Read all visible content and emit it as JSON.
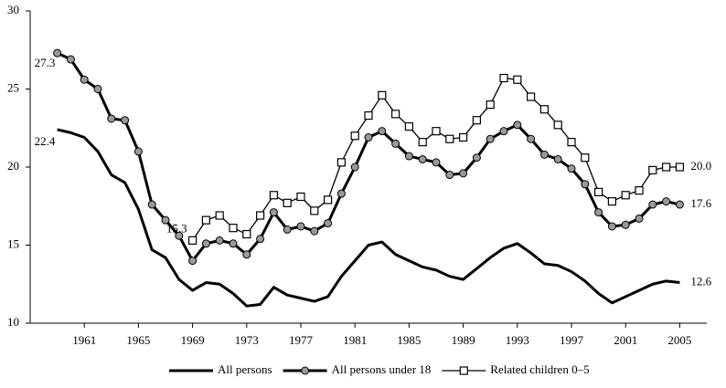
{
  "chart_data": {
    "type": "line",
    "x": [
      1959,
      1960,
      1961,
      1962,
      1963,
      1964,
      1965,
      1966,
      1967,
      1968,
      1969,
      1970,
      1971,
      1972,
      1973,
      1974,
      1975,
      1976,
      1977,
      1978,
      1979,
      1980,
      1981,
      1982,
      1983,
      1984,
      1985,
      1986,
      1987,
      1988,
      1989,
      1990,
      1991,
      1992,
      1993,
      1994,
      1995,
      1996,
      1997,
      1998,
      1999,
      2000,
      2001,
      2002,
      2003,
      2004,
      2005
    ],
    "xlim": [
      1957,
      2007
    ],
    "xticks": [
      1961,
      1965,
      1969,
      1973,
      1977,
      1981,
      1985,
      1989,
      1993,
      1997,
      2001,
      2005
    ],
    "ylim": [
      10,
      30
    ],
    "yticks": [
      10,
      15,
      20,
      25,
      30
    ],
    "legend": "bottom",
    "series": [
      {
        "name": "All persons",
        "color": "#000000",
        "values": [
          22.4,
          22.2,
          21.9,
          21.0,
          19.5,
          19.0,
          17.3,
          14.7,
          14.2,
          12.8,
          12.1,
          12.6,
          12.5,
          11.9,
          11.1,
          11.2,
          12.3,
          11.8,
          11.6,
          11.4,
          11.7,
          13.0,
          14.0,
          15.0,
          15.2,
          14.4,
          14.0,
          13.6,
          13.4,
          13.0,
          12.8,
          13.5,
          14.2,
          14.8,
          15.1,
          14.5,
          13.8,
          13.7,
          13.3,
          12.7,
          11.9,
          11.3,
          11.7,
          12.1,
          12.5,
          12.7,
          12.6
        ],
        "value_labels": [
          "22.4",
          null,
          null,
          null,
          null,
          null,
          null,
          null,
          null,
          null,
          null,
          null,
          null,
          null,
          null,
          null,
          null,
          null,
          null,
          null,
          null,
          null,
          null,
          null,
          null,
          null,
          null,
          null,
          null,
          null,
          null,
          null,
          null,
          null,
          null,
          null,
          null,
          null,
          null,
          null,
          null,
          null,
          null,
          null,
          null,
          null,
          "12.6"
        ]
      },
      {
        "name": "All persons under 18",
        "color": "#000000",
        "marker": "circle",
        "marker_color": "#999999",
        "values": [
          27.3,
          26.9,
          25.6,
          25.0,
          23.1,
          23.0,
          21.0,
          17.6,
          16.6,
          15.6,
          14.0,
          15.1,
          15.3,
          15.1,
          14.4,
          15.4,
          17.1,
          16.0,
          16.2,
          15.9,
          16.4,
          18.3,
          20.0,
          21.9,
          22.3,
          21.5,
          20.7,
          20.5,
          20.3,
          19.5,
          19.6,
          20.6,
          21.8,
          22.3,
          22.7,
          21.8,
          20.8,
          20.5,
          19.9,
          18.9,
          17.1,
          16.2,
          16.3,
          16.7,
          17.6,
          17.8,
          17.6
        ],
        "value_labels": [
          "27.3",
          null,
          null,
          null,
          null,
          null,
          null,
          null,
          null,
          null,
          null,
          null,
          null,
          null,
          null,
          null,
          null,
          null,
          null,
          null,
          null,
          null,
          null,
          null,
          null,
          null,
          null,
          null,
          null,
          null,
          null,
          null,
          null,
          null,
          null,
          null,
          null,
          null,
          null,
          null,
          null,
          null,
          null,
          null,
          null,
          null,
          "17.6"
        ]
      },
      {
        "name": "Related children 0–5",
        "color": "#000000",
        "marker": "square",
        "marker_color": "#ffffff",
        "values": [
          null,
          null,
          null,
          null,
          null,
          null,
          null,
          null,
          null,
          null,
          15.3,
          16.6,
          16.9,
          16.1,
          15.7,
          16.9,
          18.2,
          17.7,
          18.1,
          17.2,
          17.9,
          20.3,
          22.0,
          23.3,
          24.6,
          23.4,
          22.6,
          21.6,
          22.3,
          21.8,
          21.9,
          23.0,
          24.0,
          25.7,
          25.6,
          24.5,
          23.7,
          22.7,
          21.6,
          20.6,
          18.4,
          17.8,
          18.2,
          18.5,
          19.8,
          20.0,
          20.0
        ],
        "value_labels": [
          null,
          null,
          null,
          null,
          null,
          null,
          null,
          null,
          null,
          null,
          "15.3",
          null,
          null,
          null,
          null,
          null,
          null,
          null,
          null,
          null,
          null,
          null,
          null,
          null,
          null,
          null,
          null,
          null,
          null,
          null,
          null,
          null,
          null,
          null,
          null,
          null,
          null,
          null,
          null,
          null,
          null,
          null,
          null,
          null,
          null,
          null,
          "20.0"
        ]
      }
    ]
  }
}
